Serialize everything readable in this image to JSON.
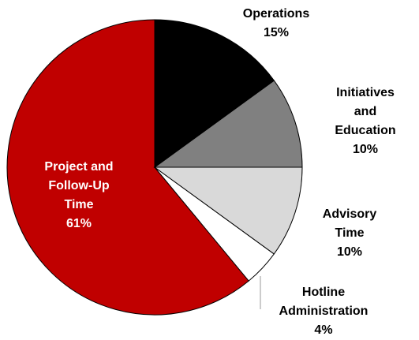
{
  "chart_data": {
    "type": "pie",
    "categories": [
      "Operations",
      "Initiatives and\nEducation",
      "Advisory\nTime",
      "Hotline\nAdministration",
      "Project and\nFollow-Up\nTime"
    ],
    "values": [
      15,
      10,
      10,
      4,
      61
    ],
    "value_labels": [
      "15%",
      "10%",
      "10%",
      "4%",
      "61%"
    ],
    "colors": [
      "#000000",
      "#808080",
      "#d9d9d9",
      "#ffffff",
      "#c00000"
    ]
  }
}
